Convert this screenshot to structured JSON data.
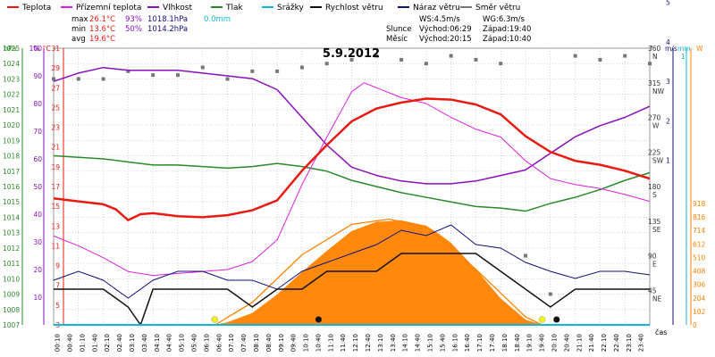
{
  "legend": [
    {
      "label": "Teplota",
      "color": "#e81a12"
    },
    {
      "label": "Přízemní teplota",
      "color": "#e020e0"
    },
    {
      "label": "Vlhkost",
      "color": "#8a0fbf"
    },
    {
      "label": "Tlak",
      "color": "#2a8a2a"
    },
    {
      "label": "Srážky",
      "color": "#12b4d8"
    },
    {
      "label": "Rychlost větru",
      "color": "#111111"
    },
    {
      "label": "Náraz větru",
      "color": "#10107e"
    },
    {
      "label": "Směr větru",
      "color": "#777777"
    }
  ],
  "stats": {
    "max": {
      "label": "max",
      "temp": "26.1°C",
      "hum": "93%",
      "press": "1018.1hPa",
      "rain": "0.0mm"
    },
    "min": {
      "label": "min",
      "temp": "13.6°C",
      "hum": "50%",
      "press": "1014.2hPa"
    },
    "avg": {
      "label": "avg",
      "temp": "19.6°C"
    }
  },
  "wind_info": {
    "ws": "WS:4.5m/s",
    "wg": "WG:6.3m/s"
  },
  "sun": {
    "label": "Slunce",
    "rise": "Východ:06:29",
    "set": "Západ:19:40"
  },
  "moon": {
    "label": "Měsíc",
    "rise": "Východ:20:15",
    "set": "Západ:10:40"
  },
  "colors": {
    "temp": "#e81a12",
    "ground": "#e020e0",
    "hum": "#8a0fbf",
    "press": "#2a8a2a",
    "rain": "#12b4d8",
    "wind": "#111111",
    "gust": "#10107e",
    "dir": "#777777",
    "solar": "#ff8200",
    "solar_line": "#ff8200"
  },
  "chart_data": {
    "type": "line",
    "title": "5.9.2012",
    "xlabel": "čas",
    "x_ticks": [
      "00:10",
      "00:40",
      "01:10",
      "01:40",
      "02:10",
      "02:40",
      "03:10",
      "03:40",
      "04:10",
      "04:40",
      "05:10",
      "05:40",
      "06:10",
      "06:40",
      "07:10",
      "07:40",
      "08:10",
      "08:40",
      "09:10",
      "09:40",
      "10:10",
      "10:40",
      "11:10",
      "11:40",
      "12:10",
      "12:40",
      "13:10",
      "13:40",
      "14:10",
      "14:40",
      "15:10",
      "15:40",
      "16:10",
      "16:40",
      "17:10",
      "17:40",
      "18:10",
      "18:40",
      "19:10",
      "19:40",
      "20:10",
      "20:40",
      "21:10",
      "21:40",
      "22:10",
      "22:40",
      "23:10",
      "23:40"
    ],
    "axes": {
      "pressure": {
        "label": "hPa",
        "range": [
          1007,
          1025
        ],
        "ticks": [
          "1025",
          "1024",
          "1023",
          "1022",
          "1021",
          "1020",
          "1019",
          "1018",
          "1017",
          "1016",
          "1015",
          "1014",
          "1013",
          "1012",
          "1011",
          "1010",
          "1009",
          "1008",
          "1007"
        ]
      },
      "humidity": {
        "label": "%",
        "range": [
          0,
          100
        ],
        "ticks": [
          "100",
          "90",
          "80",
          "70",
          "60",
          "50",
          "40",
          "30",
          "20",
          "10",
          "0"
        ]
      },
      "temperature": {
        "label": "°C",
        "range": [
          3,
          31
        ],
        "ticks": [
          "31",
          "29",
          "27",
          "25",
          "23",
          "21",
          "19",
          "17",
          "15",
          "13",
          "11",
          "9",
          "7",
          "5",
          "3"
        ]
      },
      "wind_dir": {
        "label": "°",
        "range": [
          0,
          360
        ],
        "ticks": [
          {
            "v": "360",
            "c": "N"
          },
          {
            "v": "315",
            "c": "NW"
          },
          {
            "v": "270",
            "c": "W"
          },
          {
            "v": "225",
            "c": "SW"
          },
          {
            "v": "180",
            "c": "S"
          },
          {
            "v": "135",
            "c": "SE"
          },
          {
            "v": "90",
            "c": "E"
          },
          {
            "v": "45",
            "c": "NE"
          }
        ]
      },
      "wind_speed": {
        "label": "m/s",
        "range": [
          0,
          7
        ],
        "ticks": [
          "7",
          "6",
          "5",
          "4",
          "3",
          "2",
          "1"
        ]
      },
      "rain": {
        "label": "mm",
        "top_tick": "1"
      },
      "solar": {
        "label": "W",
        "range": [
          0,
          918
        ],
        "ticks": [
          "918",
          "816",
          "714",
          "612",
          "510",
          "408",
          "306",
          "204",
          "102",
          "0"
        ]
      }
    },
    "series": [
      {
        "name": "Teplota",
        "unit": "°C",
        "x": [
          0,
          1,
          2,
          2.5,
          3,
          3.5,
          4,
          5,
          6,
          7,
          8,
          9,
          10,
          11,
          12,
          13,
          14,
          15,
          16,
          17,
          18,
          19,
          20,
          21,
          22,
          23,
          24
        ],
        "values": [
          15.8,
          15.5,
          15.2,
          14.7,
          13.6,
          14.2,
          14.3,
          14.0,
          13.9,
          14.1,
          14.6,
          15.6,
          18.6,
          21.2,
          23.6,
          24.9,
          25.5,
          25.9,
          25.8,
          25.3,
          24.3,
          22.1,
          20.5,
          19.6,
          19.2,
          18.6,
          17.8
        ]
      },
      {
        "name": "Přízemní teplota",
        "unit": "°C",
        "x": [
          0,
          1,
          2,
          3,
          4,
          5,
          6,
          7,
          8,
          9,
          10,
          11,
          12,
          12.5,
          13,
          14,
          15,
          16,
          17,
          18,
          19,
          20,
          21,
          22,
          23,
          24
        ],
        "values": [
          12.0,
          11.0,
          9.8,
          8.4,
          8.0,
          8.2,
          8.4,
          8.6,
          9.4,
          11.6,
          17.2,
          22.0,
          26.6,
          27.5,
          27.0,
          26.0,
          25.4,
          24.0,
          22.8,
          22.0,
          19.6,
          17.8,
          17.2,
          16.8,
          16.2,
          15.5
        ]
      },
      {
        "name": "Vlhkost",
        "unit": "%",
        "x": [
          0,
          1,
          2,
          3,
          4,
          5,
          6,
          7,
          8,
          9,
          10,
          11,
          12,
          13,
          14,
          15,
          16,
          17,
          18,
          19,
          20,
          21,
          22,
          23,
          24
        ],
        "values": [
          88,
          91,
          93,
          92,
          92,
          92,
          91,
          90,
          89,
          85,
          75,
          65,
          57,
          54,
          52,
          51,
          51,
          52,
          54,
          56,
          62,
          68,
          72,
          75,
          79
        ]
      },
      {
        "name": "Tlak",
        "unit": "hPa",
        "x": [
          0,
          1,
          2,
          3,
          4,
          5,
          6,
          7,
          8,
          9,
          10,
          11,
          12,
          13,
          14,
          15,
          16,
          17,
          18,
          19,
          20,
          21,
          22,
          23,
          24
        ],
        "values": [
          1018.0,
          1017.9,
          1017.8,
          1017.6,
          1017.4,
          1017.4,
          1017.3,
          1017.2,
          1017.3,
          1017.5,
          1017.3,
          1017.0,
          1016.4,
          1016.0,
          1015.6,
          1015.3,
          1015.0,
          1014.7,
          1014.6,
          1014.4,
          1014.9,
          1015.3,
          1015.8,
          1016.4,
          1016.9
        ]
      },
      {
        "name": "Rychlost větru",
        "unit": "m/s",
        "x": [
          0,
          1,
          2,
          3,
          3.5,
          4,
          5,
          6,
          7,
          8,
          9,
          10,
          11,
          12,
          13,
          14,
          15,
          16,
          17,
          18,
          19,
          20,
          21,
          22,
          23,
          24
        ],
        "values": [
          2,
          2,
          2,
          1,
          0,
          2,
          2,
          2,
          2,
          1,
          2,
          2,
          3,
          3,
          3,
          4,
          4,
          4,
          4,
          3,
          2,
          1,
          2,
          2,
          2,
          2
        ]
      },
      {
        "name": "Náraz větru",
        "unit": "m/s",
        "x": [
          0,
          1,
          2,
          3,
          4,
          5,
          6,
          7,
          8,
          9,
          10,
          11,
          12,
          13,
          14,
          15,
          16,
          17,
          18,
          19,
          20,
          21,
          22,
          23,
          24
        ],
        "values": [
          2.5,
          3,
          2.5,
          1.5,
          2.5,
          3,
          3,
          2.5,
          2.5,
          2,
          3,
          3.5,
          4,
          4.5,
          5.3,
          5.0,
          5.6,
          4.5,
          4.3,
          3.5,
          3.0,
          2.6,
          3.0,
          3.0,
          2.8
        ]
      },
      {
        "name": "Srážky",
        "unit": "mm",
        "x": [
          0,
          24
        ],
        "values": [
          0,
          0
        ]
      }
    ],
    "solar": {
      "unit": "W",
      "x": [
        6.5,
        7,
        8,
        9,
        10,
        11,
        12,
        13,
        14,
        15,
        15.5,
        16,
        17,
        18,
        19,
        19.67
      ],
      "values": [
        0,
        20,
        90,
        230,
        400,
        560,
        710,
        780,
        790,
        750,
        690,
        620,
        420,
        200,
        40,
        0
      ]
    },
    "solar_theoretical": {
      "unit": "W",
      "x": [
        6.5,
        8,
        10,
        12,
        13.5,
        15,
        17,
        19,
        19.67
      ],
      "values": [
        0,
        170,
        530,
        760,
        800,
        740,
        420,
        60,
        0
      ]
    },
    "wind_direction": {
      "unit": "°",
      "x": [
        0,
        1,
        2,
        3,
        4,
        5,
        6,
        7,
        8,
        9,
        10,
        11,
        12,
        13,
        14,
        15,
        16,
        17,
        18,
        19,
        20,
        21,
        22,
        23,
        24
      ],
      "values": [
        320,
        320,
        320,
        330,
        325,
        325,
        335,
        320,
        330,
        330,
        335,
        340,
        345,
        350,
        345,
        340,
        350,
        345,
        340,
        90,
        40,
        350,
        345,
        350,
        340
      ]
    },
    "sun_markers": {
      "sunrise": "06:29",
      "sunset": "19:40"
    },
    "moon_markers": {
      "moonset": "10:40",
      "moonrise": "20:15"
    }
  }
}
